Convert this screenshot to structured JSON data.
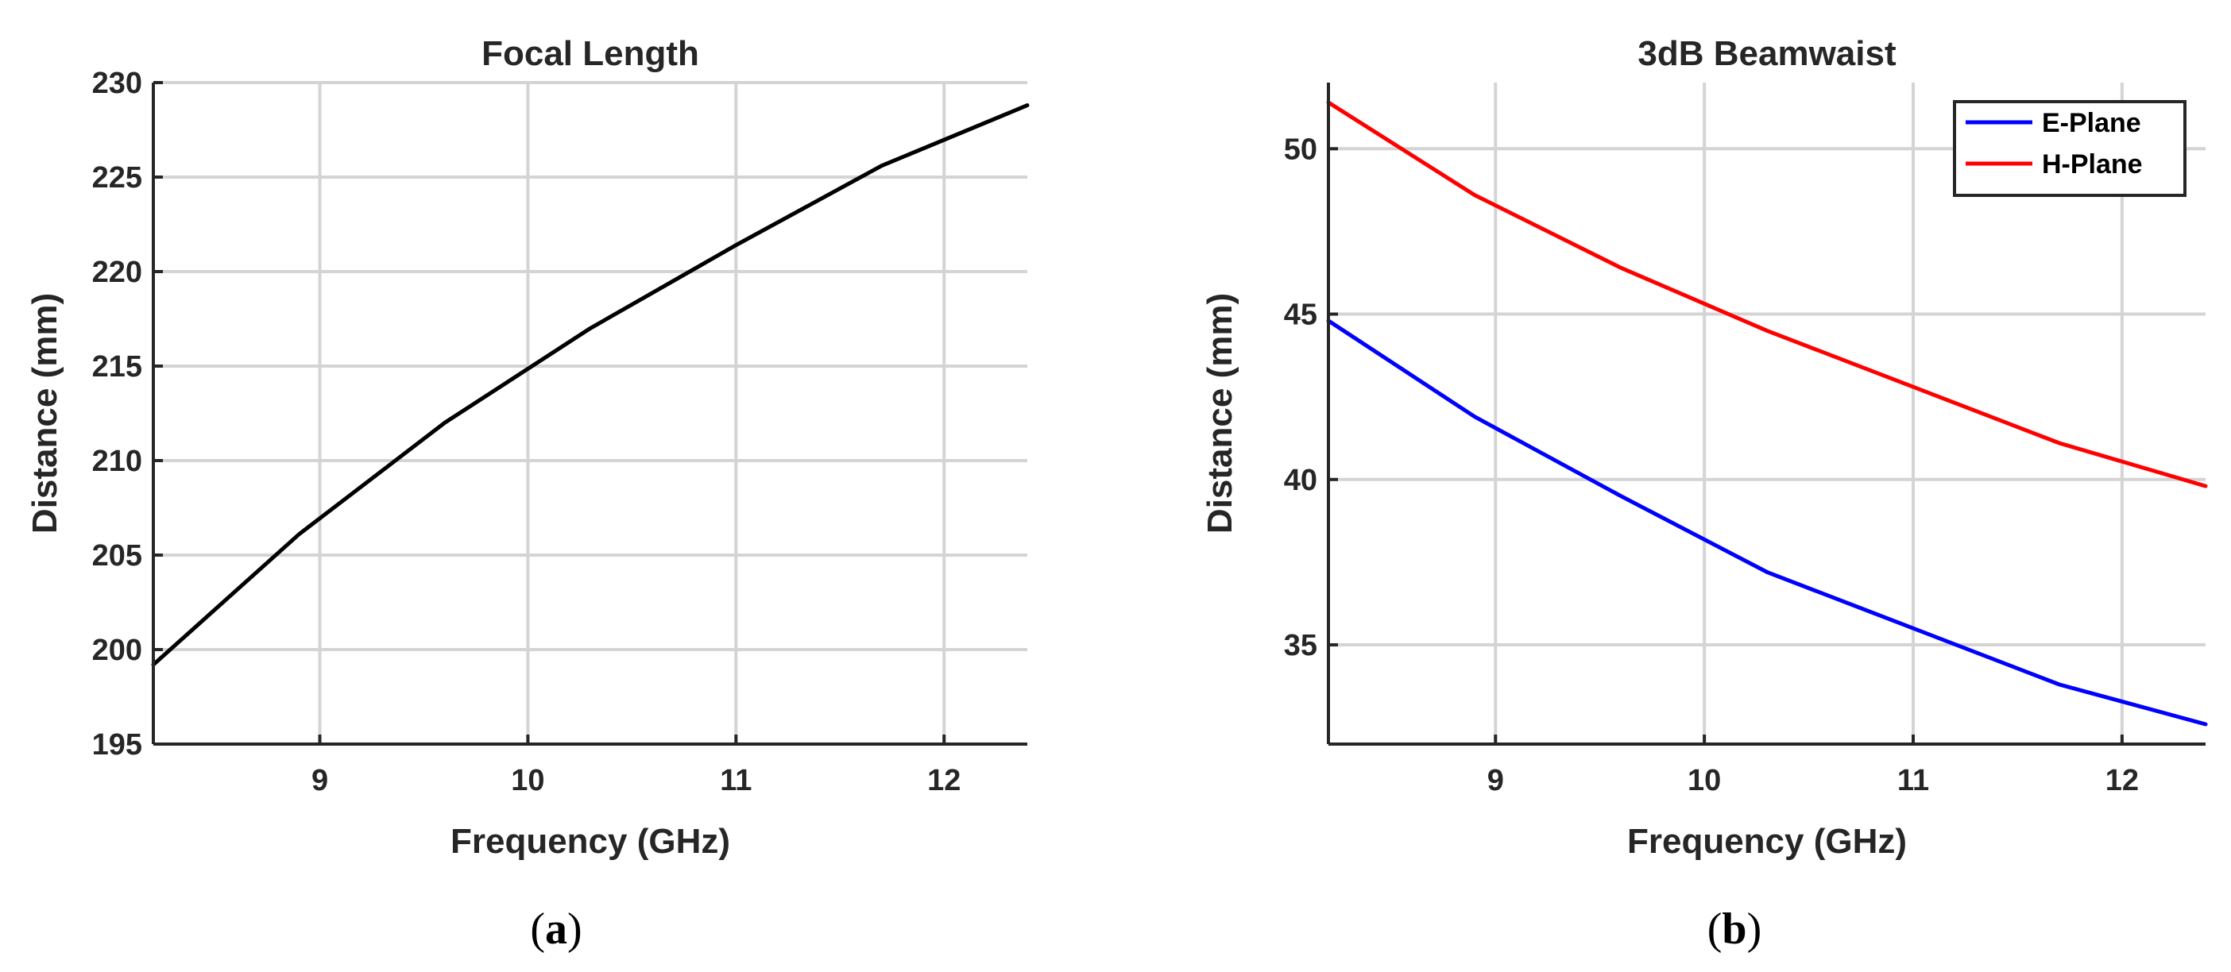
{
  "chart_data": [
    {
      "type": "line",
      "panel": "a",
      "title": "Focal Length",
      "xlabel": "Frequency (GHz)",
      "ylabel": "Distance (mm)",
      "xlim": [
        8.2,
        12.4
      ],
      "ylim": [
        195,
        230
      ],
      "xticks": [
        9,
        10,
        11,
        12
      ],
      "yticks": [
        195,
        200,
        205,
        210,
        215,
        220,
        225,
        230
      ],
      "grid": true,
      "legend": null,
      "series": [
        {
          "name": "Focal Length",
          "color": "#000000",
          "x": [
            8.2,
            8.9,
            9.6,
            10.3,
            11.0,
            11.7,
            12.4
          ],
          "y": [
            199.2,
            206.1,
            212.0,
            217.0,
            221.4,
            225.6,
            228.8
          ]
        }
      ]
    },
    {
      "type": "line",
      "panel": "b",
      "title": "3dB Beamwaist",
      "xlabel": "Frequency (GHz)",
      "ylabel": "Distance (mm)",
      "xlim": [
        8.2,
        12.4
      ],
      "ylim": [
        32,
        52
      ],
      "xticks": [
        9,
        10,
        11,
        12
      ],
      "yticks": [
        35,
        40,
        45,
        50
      ],
      "grid": true,
      "legend": "top-right",
      "series": [
        {
          "name": "E-Plane",
          "color": "#0000ff",
          "x": [
            8.2,
            8.9,
            9.6,
            10.3,
            11.0,
            11.7,
            12.4
          ],
          "y": [
            44.8,
            41.9,
            39.5,
            37.2,
            35.5,
            33.8,
            32.6
          ]
        },
        {
          "name": "H-Plane",
          "color": "#ff0000",
          "x": [
            8.2,
            8.9,
            9.6,
            10.3,
            11.0,
            11.7,
            12.4
          ],
          "y": [
            51.4,
            48.6,
            46.4,
            44.5,
            42.8,
            41.1,
            39.8
          ]
        }
      ]
    }
  ],
  "panel_labels": {
    "a": {
      "open": "(",
      "letter": "a",
      "close": ")"
    },
    "b": {
      "open": "(",
      "letter": "b",
      "close": ")"
    }
  }
}
